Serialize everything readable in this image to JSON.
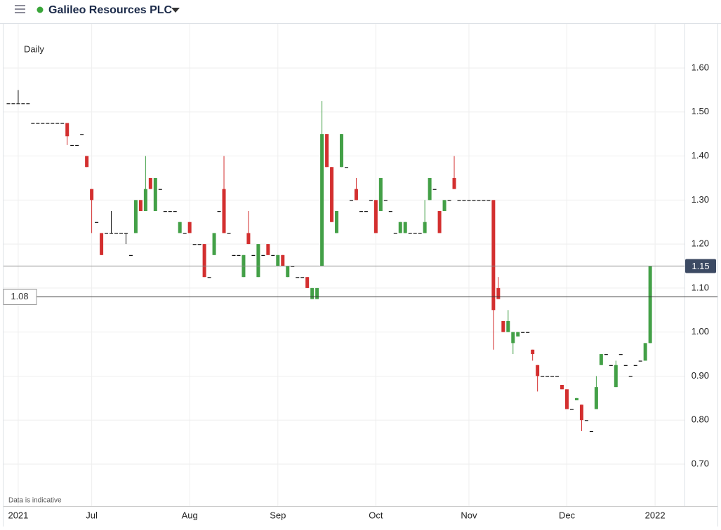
{
  "header": {
    "title": "Galileo Resources PLC"
  },
  "chart_data": {
    "type": "candlestick",
    "interval_label": "Daily",
    "note": "Data is indicative",
    "up_color": "#43a047",
    "down_color": "#d32f2f",
    "flat_color": "#111111",
    "last_price": 1.15,
    "reference_line": 1.08,
    "grid": true,
    "ylim": [
      0.6,
      1.7
    ],
    "yticks": [
      {
        "value": 0.7,
        "label": "0.70"
      },
      {
        "value": 0.8,
        "label": "0.80"
      },
      {
        "value": 0.9,
        "label": "0.90"
      },
      {
        "value": 1.0,
        "label": "1.00"
      },
      {
        "value": 1.1,
        "label": "1.10"
      },
      {
        "value": 1.2,
        "label": "1.20"
      },
      {
        "value": 1.3,
        "label": "1.30"
      },
      {
        "value": 1.4,
        "label": "1.40"
      },
      {
        "value": 1.5,
        "label": "1.50"
      },
      {
        "value": 1.6,
        "label": "1.60"
      }
    ],
    "xlim": [
      -1,
      138
    ],
    "xticks": [
      {
        "value": 2,
        "label": "2021"
      },
      {
        "value": 17,
        "label": "Jul"
      },
      {
        "value": 37,
        "label": "Aug"
      },
      {
        "value": 55,
        "label": "Sep"
      },
      {
        "value": 75,
        "label": "Oct"
      },
      {
        "value": 94,
        "label": "Nov"
      },
      {
        "value": 114,
        "label": "Dec"
      },
      {
        "value": 132,
        "label": "2022"
      }
    ],
    "open": [
      1.52,
      1.52,
      1.52,
      1.52,
      1.52,
      1.475,
      1.475,
      1.475,
      1.475,
      1.475,
      1.475,
      1.475,
      1.475,
      1.425,
      1.425,
      1.45,
      1.4,
      1.325,
      1.25,
      1.225,
      1.225,
      1.225,
      1.225,
      1.225,
      1.225,
      1.175,
      1.225,
      1.3,
      1.275,
      1.35,
      1.275,
      1.325,
      1.275,
      1.275,
      1.275,
      1.225,
      1.225,
      1.25,
      1.2,
      1.2,
      1.2,
      1.125,
      1.175,
      1.275,
      1.325,
      1.225,
      1.175,
      1.175,
      1.125,
      1.225,
      1.175,
      1.125,
      1.175,
      1.2,
      1.175,
      1.15,
      1.175,
      1.125,
      1.15,
      1.125,
      1.125,
      1.125,
      1.075,
      1.075,
      1.15,
      1.45,
      1.375,
      1.225,
      1.375,
      1.375,
      1.3,
      1.325,
      1.275,
      1.275,
      1.3,
      1.3,
      1.275,
      1.3,
      1.275,
      1.225,
      1.225,
      1.225,
      1.225,
      1.225,
      1.225,
      1.225,
      1.3,
      1.325,
      1.275,
      1.275,
      1.3,
      1.35,
      1.3,
      1.3,
      1.3,
      1.3,
      1.3,
      1.3,
      1.3,
      1.3,
      1.1,
      1.025,
      1.0,
      0.975,
      0.99,
      1.0,
      1.0,
      0.96,
      0.925,
      0.9,
      0.9,
      0.9,
      0.9,
      0.88,
      0.87,
      0.825,
      0.845,
      0.835,
      0.8,
      0.775,
      0.825,
      0.925,
      0.95,
      0.925,
      0.875,
      0.95,
      0.925,
      0.9,
      0.925,
      0.935,
      0.935,
      0.975
    ],
    "high": [
      1.52,
      1.52,
      1.55,
      1.52,
      1.52,
      1.475,
      1.475,
      1.475,
      1.475,
      1.475,
      1.475,
      1.475,
      1.475,
      1.425,
      1.425,
      1.45,
      1.4,
      1.325,
      1.25,
      1.225,
      1.225,
      1.275,
      1.225,
      1.225,
      1.225,
      1.175,
      1.3,
      1.3,
      1.4,
      1.35,
      1.35,
      1.325,
      1.275,
      1.275,
      1.275,
      1.25,
      1.225,
      1.25,
      1.2,
      1.2,
      1.2,
      1.125,
      1.225,
      1.275,
      1.4,
      1.225,
      1.175,
      1.175,
      1.175,
      1.275,
      1.175,
      1.2,
      1.175,
      1.2,
      1.175,
      1.175,
      1.175,
      1.15,
      1.15,
      1.125,
      1.125,
      1.125,
      1.1,
      1.1,
      1.525,
      1.45,
      1.375,
      1.275,
      1.45,
      1.375,
      1.3,
      1.35,
      1.275,
      1.275,
      1.3,
      1.3,
      1.35,
      1.3,
      1.275,
      1.225,
      1.25,
      1.25,
      1.225,
      1.225,
      1.225,
      1.3,
      1.35,
      1.325,
      1.275,
      1.3,
      1.3,
      1.4,
      1.3,
      1.3,
      1.3,
      1.3,
      1.3,
      1.3,
      1.3,
      1.3,
      1.125,
      1.025,
      1.05,
      1.0,
      1.0,
      1.0,
      1.0,
      0.96,
      0.925,
      0.9,
      0.9,
      0.9,
      0.9,
      0.88,
      0.87,
      0.825,
      0.85,
      0.835,
      0.8,
      0.775,
      0.9,
      0.95,
      0.95,
      0.925,
      0.935,
      0.95,
      0.925,
      0.9,
      0.925,
      0.935,
      0.975,
      1.15
    ],
    "low": [
      1.52,
      1.52,
      1.52,
      1.52,
      1.52,
      1.475,
      1.475,
      1.475,
      1.475,
      1.475,
      1.475,
      1.475,
      1.425,
      1.425,
      1.425,
      1.45,
      1.375,
      1.225,
      1.25,
      1.175,
      1.225,
      1.225,
      1.225,
      1.225,
      1.2,
      1.175,
      1.225,
      1.275,
      1.275,
      1.325,
      1.275,
      1.325,
      1.275,
      1.275,
      1.275,
      1.225,
      1.225,
      1.225,
      1.2,
      1.2,
      1.125,
      1.125,
      1.175,
      1.275,
      1.225,
      1.225,
      1.175,
      1.175,
      1.125,
      1.2,
      1.175,
      1.125,
      1.175,
      1.175,
      1.175,
      1.15,
      1.15,
      1.125,
      1.15,
      1.125,
      1.125,
      1.1,
      1.075,
      1.075,
      1.15,
      1.375,
      1.25,
      1.225,
      1.375,
      1.375,
      1.3,
      1.3,
      1.275,
      1.275,
      1.3,
      1.225,
      1.275,
      1.3,
      1.275,
      1.225,
      1.225,
      1.225,
      1.225,
      1.225,
      1.225,
      1.225,
      1.3,
      1.325,
      1.225,
      1.275,
      1.3,
      1.325,
      1.3,
      1.3,
      1.3,
      1.3,
      1.3,
      1.3,
      1.3,
      0.96,
      1.075,
      1.0,
      1.0,
      0.95,
      0.99,
      1.0,
      1.0,
      0.935,
      0.865,
      0.9,
      0.9,
      0.9,
      0.9,
      0.87,
      0.825,
      0.825,
      0.845,
      0.775,
      0.8,
      0.775,
      0.825,
      0.925,
      0.95,
      0.925,
      0.875,
      0.95,
      0.925,
      0.9,
      0.925,
      0.935,
      0.935,
      0.975
    ],
    "close": [
      1.52,
      1.52,
      1.52,
      1.52,
      1.52,
      1.475,
      1.475,
      1.475,
      1.475,
      1.475,
      1.475,
      1.475,
      1.445,
      1.425,
      1.425,
      1.45,
      1.375,
      1.3,
      1.25,
      1.175,
      1.225,
      1.225,
      1.225,
      1.225,
      1.225,
      1.175,
      1.3,
      1.275,
      1.325,
      1.325,
      1.35,
      1.325,
      1.275,
      1.275,
      1.275,
      1.25,
      1.225,
      1.225,
      1.2,
      1.2,
      1.125,
      1.125,
      1.225,
      1.275,
      1.225,
      1.225,
      1.175,
      1.175,
      1.175,
      1.2,
      1.175,
      1.2,
      1.175,
      1.175,
      1.175,
      1.175,
      1.15,
      1.15,
      1.15,
      1.125,
      1.125,
      1.1,
      1.1,
      1.1,
      1.45,
      1.375,
      1.25,
      1.275,
      1.45,
      1.375,
      1.3,
      1.3,
      1.275,
      1.275,
      1.3,
      1.225,
      1.35,
      1.3,
      1.275,
      1.225,
      1.25,
      1.25,
      1.225,
      1.225,
      1.225,
      1.25,
      1.35,
      1.325,
      1.225,
      1.3,
      1.3,
      1.325,
      1.3,
      1.3,
      1.3,
      1.3,
      1.3,
      1.3,
      1.3,
      1.05,
      1.075,
      1.0,
      1.025,
      1.0,
      1.0,
      1.0,
      1.0,
      0.95,
      0.9,
      0.9,
      0.9,
      0.9,
      0.9,
      0.87,
      0.825,
      0.825,
      0.85,
      0.8,
      0.8,
      0.775,
      0.875,
      0.95,
      0.95,
      0.925,
      0.925,
      0.95,
      0.925,
      0.9,
      0.925,
      0.935,
      0.975,
      1.15
    ]
  }
}
